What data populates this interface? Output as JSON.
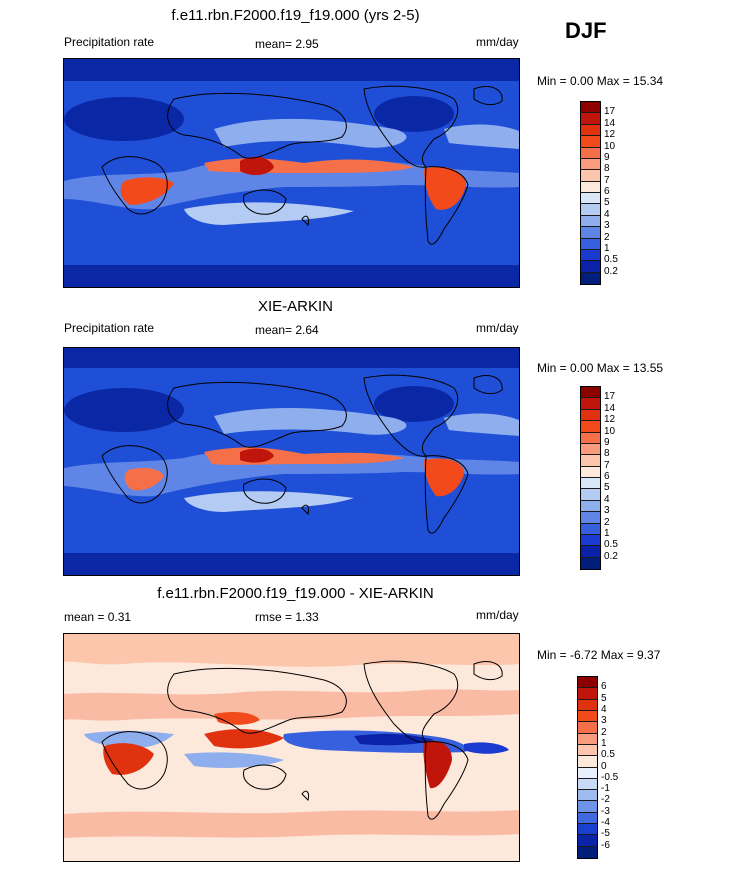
{
  "season": "DJF",
  "panels": [
    {
      "title": "f.e11.rbn.F2000.f19_f19.000 (yrs 2-5)",
      "left_label": "Precipitation rate",
      "center_label": "mean=   2.95",
      "right_label": "mm/day",
      "minmax": "Min =   0.00 Max =  15.34",
      "bar_labels": [
        "17",
        "14",
        "12",
        "10",
        "9",
        "8",
        "7",
        "6",
        "5",
        "4",
        "3",
        "2",
        "1",
        "0.5",
        "0.2"
      ],
      "bar_colors": [
        "#8c0000",
        "#c0150b",
        "#e0320f",
        "#f24a1a",
        "#f57048",
        "#f99c7e",
        "#fcc6ad",
        "#fde8dc",
        "#d9e8f8",
        "#b4cbf3",
        "#8faeee",
        "#5f86e6",
        "#3660dd",
        "#1a3ad0",
        "#0a21a8",
        "#001e7a"
      ]
    },
    {
      "title": "XIE-ARKIN",
      "left_label": "Precipitation rate",
      "center_label": "mean=   2.64",
      "right_label": "mm/day",
      "minmax": "Min =   0.00 Max =  13.55",
      "bar_labels": [
        "17",
        "14",
        "12",
        "10",
        "9",
        "8",
        "7",
        "6",
        "5",
        "4",
        "3",
        "2",
        "1",
        "0.5",
        "0.2"
      ],
      "bar_colors": [
        "#8c0000",
        "#c0150b",
        "#e0320f",
        "#f24a1a",
        "#f57048",
        "#f99c7e",
        "#fcc6ad",
        "#fde8dc",
        "#d9e8f8",
        "#b4cbf3",
        "#8faeee",
        "#5f86e6",
        "#3660dd",
        "#1a3ad0",
        "#0a21a8",
        "#001e7a"
      ]
    },
    {
      "title": "f.e11.rbn.F2000.f19_f19.000 - XIE-ARKIN",
      "left_label": "mean =   0.31",
      "center_label": "rmse =   1.33",
      "right_label": "mm/day",
      "minmax": "Min =  -6.72 Max =   9.37",
      "bar_labels": [
        "6",
        "5",
        "4",
        "3",
        "2",
        "1",
        "0.5",
        "0",
        "-0.5",
        "-1",
        "-2",
        "-3",
        "-4",
        "-5",
        "-6"
      ],
      "bar_colors": [
        "#8c0000",
        "#c0150b",
        "#e0320f",
        "#f24a1a",
        "#f57048",
        "#f99c7e",
        "#fcc6ad",
        "#fde8dc",
        "#e8f0fb",
        "#c8daf6",
        "#9fbbf0",
        "#6f93e8",
        "#4269de",
        "#1a40d0",
        "#0a24a8",
        "#001e7a"
      ]
    }
  ]
}
